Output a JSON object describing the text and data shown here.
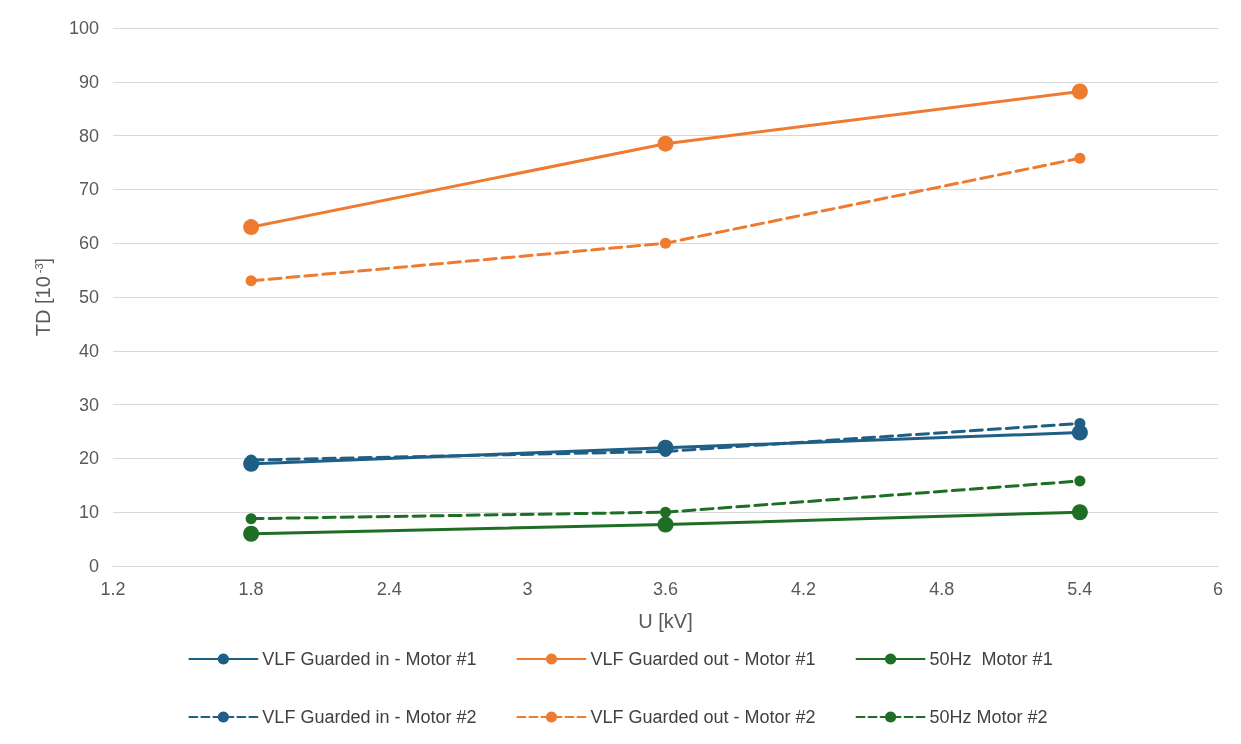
{
  "chart_data": {
    "type": "line",
    "xlabel": "U [kV]",
    "ylabel": "TD [10$^{-3}$]",
    "x": [
      1.8,
      3.6,
      5.4
    ],
    "xlim": [
      1.2,
      6
    ],
    "xticks": [
      1.2,
      1.8,
      2.4,
      3,
      3.6,
      4.2,
      4.8,
      5.4,
      6
    ],
    "ylim": [
      0,
      100
    ],
    "yticks": [
      0,
      10,
      20,
      30,
      40,
      50,
      60,
      70,
      80,
      90,
      100
    ],
    "grid": "y",
    "legend": "bottom",
    "marker": "circle",
    "series": [
      {
        "name": "VLF Guarded in - Motor #1",
        "color": "#1f5f86",
        "line_style": "solid",
        "values": [
          19,
          22,
          24.8
        ]
      },
      {
        "name": "VLF Guarded out - Motor #1",
        "color": "#ee7b30",
        "line_style": "solid",
        "values": [
          63,
          78.5,
          88.2
        ]
      },
      {
        "name": "50Hz  Motor #1",
        "color": "#1e6f25",
        "line_style": "solid",
        "values": [
          6,
          7.7,
          10
        ]
      },
      {
        "name": "VLF Guarded in - Motor #2",
        "color": "#1f5f86",
        "line_style": "dashed",
        "values": [
          19.7,
          21.3,
          26.5
        ]
      },
      {
        "name": "VLF Guarded out - Motor #2",
        "color": "#ee7b30",
        "line_style": "dashed",
        "values": [
          53,
          60,
          75.8
        ]
      },
      {
        "name": "50Hz Motor #2",
        "color": "#1e6f25",
        "line_style": "dashed",
        "values": [
          8.8,
          10,
          15.8
        ]
      }
    ]
  }
}
